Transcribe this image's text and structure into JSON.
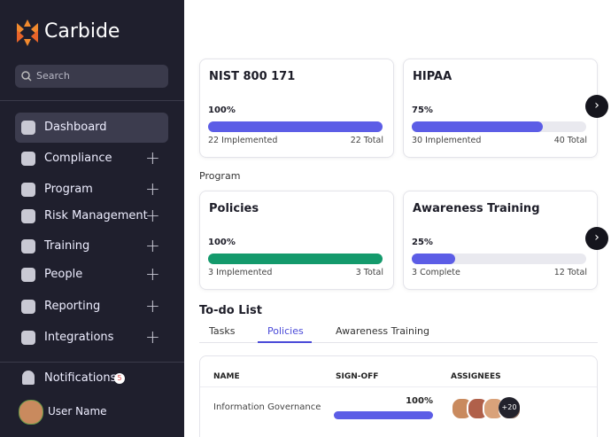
{
  "brand": "Carbide",
  "search_placeholder": "Search",
  "nav": [
    {
      "label": "Dashboard",
      "active": true
    },
    {
      "label": "Compliance",
      "active": false
    },
    {
      "label": "Program",
      "active": false
    },
    {
      "label": "Risk Management",
      "active": false
    },
    {
      "label": "Training",
      "active": false
    },
    {
      "label": "People",
      "active": false
    },
    {
      "label": "Reporting",
      "active": false
    },
    {
      "label": "Integrations",
      "active": false
    }
  ],
  "notifications": {
    "label": "Notifications",
    "count": 5
  },
  "user": {
    "name": "User Name"
  },
  "compliance_cards": [
    {
      "title": "NIST 800 171",
      "percent": 100,
      "percent_label": "100%",
      "left": "22 Implemented",
      "right": "22 Total",
      "color": "#5c5de6"
    },
    {
      "title": "HIPAA",
      "percent": 75,
      "percent_label": "75%",
      "left": "30 Implemented",
      "right": "40 Total",
      "color": "#5c5de6"
    }
  ],
  "program_label": "Program",
  "program_cards": [
    {
      "title": "Policies",
      "percent": 100,
      "percent_label": "100%",
      "left": "3 Implemented",
      "right": "3 Total",
      "color": "#149a6c"
    },
    {
      "title": "Awareness Training",
      "percent": 25,
      "percent_label": "25%",
      "left": "3 Complete",
      "right": "12 Total",
      "color": "#5c5de6"
    }
  ],
  "todo": {
    "title": "To-do List",
    "tabs": [
      "Tasks",
      "Policies",
      "Awareness Training"
    ],
    "active_tab": 1,
    "columns": [
      "NAME",
      "SIGN-OFF",
      "ASSIGNEES"
    ],
    "rows": [
      {
        "name": "Information Governance",
        "percent": 100,
        "percent_label": "100%",
        "extra_assignees": "+20"
      }
    ]
  }
}
